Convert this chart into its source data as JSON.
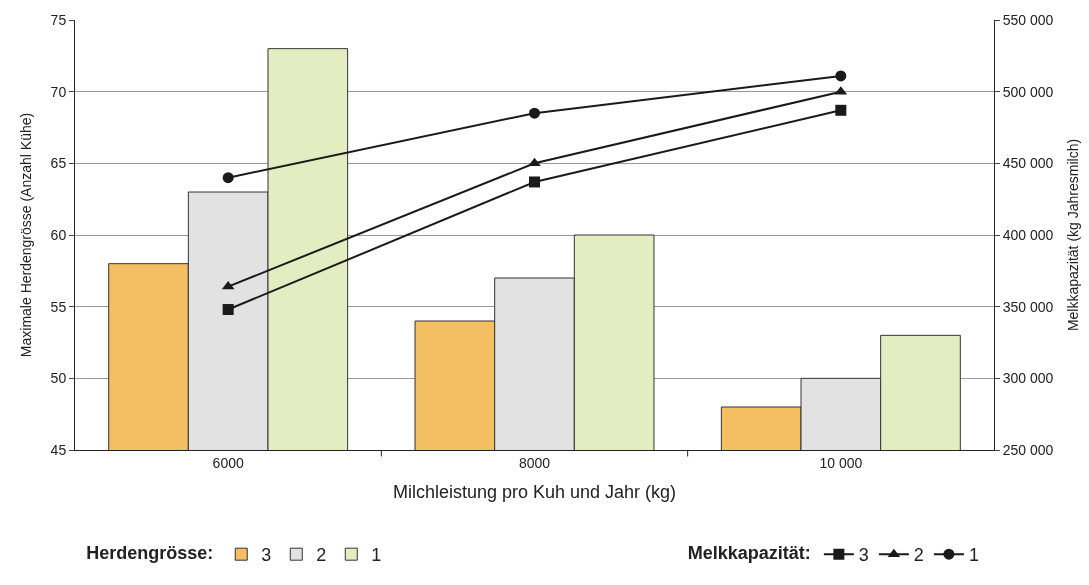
{
  "chart_data": {
    "type": "bar",
    "xlabel": "Milchleistung pro Kuh und Jahr (kg)",
    "ylabel": "Maximale Herdengrösse (Anzahl Kühe)",
    "y2label": "Melkkapazität (kg Jahresmilch)",
    "legend_title": "Herdengrösse:",
    "annotations": [
      "Melkkapazität:"
    ],
    "categories": [
      "6000",
      "8000",
      "10 000"
    ],
    "series": [
      {
        "name": "3",
        "color": "#f4be62",
        "values": [
          58,
          54,
          48
        ]
      },
      {
        "name": "2",
        "color": "#e2e2e2",
        "values": [
          63,
          57,
          50
        ]
      },
      {
        "name": "1",
        "color": "#e4edc2",
        "values": [
          73,
          60,
          53
        ]
      },
      {
        "name": "3",
        "type": "line",
        "axis": "y2",
        "color": "#1a1a1a",
        "marker": "square",
        "values": [
          348000,
          437000,
          487000
        ]
      },
      {
        "name": "2",
        "type": "line",
        "axis": "y2",
        "color": "#1a1a1a",
        "marker": "triangle",
        "values": [
          364000,
          450000,
          500000
        ]
      },
      {
        "name": "1",
        "type": "line",
        "axis": "y2",
        "color": "#1a1a1a",
        "marker": "circle",
        "values": [
          440000,
          485000,
          511000
        ]
      }
    ],
    "ylim": [
      45,
      75
    ],
    "yticks": [
      45,
      50,
      55,
      60,
      65,
      70,
      75
    ],
    "y2lim": [
      250000,
      550000
    ],
    "y2ticks": [
      {
        "value": 250000,
        "label": "250 000"
      },
      {
        "value": 300000,
        "label": "300 000"
      },
      {
        "value": 350000,
        "label": "350 000"
      },
      {
        "value": 400000,
        "label": "400 000"
      },
      {
        "value": 450000,
        "label": "450 000"
      },
      {
        "value": 500000,
        "label": "500 000"
      },
      {
        "value": 550000,
        "label": "550 000"
      }
    ],
    "grid": "y",
    "legend": "bottom"
  }
}
